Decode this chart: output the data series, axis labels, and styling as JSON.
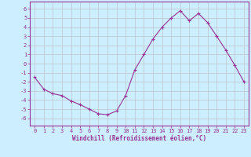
{
  "x": [
    0,
    1,
    2,
    3,
    4,
    5,
    6,
    7,
    8,
    9,
    10,
    11,
    12,
    13,
    14,
    15,
    16,
    17,
    18,
    19,
    20,
    21,
    22,
    23
  ],
  "y": [
    -1.5,
    -2.8,
    -3.3,
    -3.5,
    -4.1,
    -4.5,
    -5.0,
    -5.5,
    -5.6,
    -5.2,
    -3.5,
    -0.7,
    1.0,
    2.7,
    4.0,
    5.0,
    5.8,
    4.7,
    5.5,
    4.5,
    3.0,
    1.5,
    -0.2,
    -2.0
  ],
  "line_color": "#993399",
  "marker": "+",
  "markersize": 3,
  "bg_color": "#cceeff",
  "grid_color": "#bbbbbb",
  "ylabel_ticks": [
    -6,
    -5,
    -4,
    -3,
    -2,
    -1,
    0,
    1,
    2,
    3,
    4,
    5,
    6
  ],
  "xlabel": "Windchill (Refroidissement éolien,°C)",
  "xlim": [
    -0.5,
    23.5
  ],
  "ylim": [
    -6.8,
    6.8
  ],
  "tick_fontsize": 5.0,
  "xlabel_fontsize": 5.5
}
